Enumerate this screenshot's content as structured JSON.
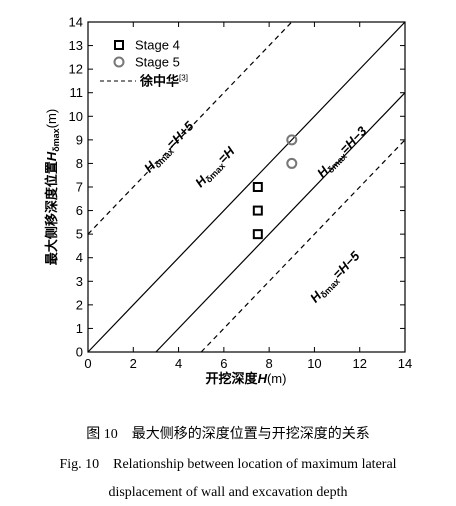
{
  "chart_data": {
    "type": "scatter",
    "xlabel": [
      "开挖深度",
      "H",
      "(m)"
    ],
    "ylabel": [
      "最大侧移深度位置",
      "H",
      "δmax",
      "(m)"
    ],
    "xlim": [
      0,
      14
    ],
    "ylim": [
      0,
      14
    ],
    "xticks": [
      0,
      2,
      4,
      6,
      8,
      10,
      12,
      14
    ],
    "yticks": [
      0,
      1,
      2,
      3,
      4,
      5,
      6,
      7,
      8,
      9,
      10,
      11,
      12,
      13,
      14
    ],
    "legend": "upper left",
    "series": [
      {
        "name": "Stage 4",
        "marker": "square",
        "color": "#000000",
        "x": [
          7.5,
          7.5,
          7.5
        ],
        "values": [
          5,
          6,
          7
        ]
      },
      {
        "name": "Stage 5",
        "marker": "circle",
        "color": "#777777",
        "x": [
          9,
          9
        ],
        "values": [
          8,
          9
        ]
      }
    ],
    "dashed_legend": [
      "徐中华",
      "[3]"
    ],
    "reference_lines": [
      {
        "dashed": true,
        "x": [
          0,
          9
        ],
        "values": [
          5,
          14
        ],
        "label": [
          "H",
          "δmax",
          "=H+5"
        ]
      },
      {
        "dashed": false,
        "x": [
          0,
          14
        ],
        "values": [
          0,
          14
        ],
        "label": [
          "H",
          "δmax",
          "=H"
        ]
      },
      {
        "dashed": false,
        "x": [
          3,
          14
        ],
        "values": [
          0,
          11
        ],
        "label": [
          "H",
          "δmax",
          "=H−3"
        ]
      },
      {
        "dashed": true,
        "x": [
          5,
          14
        ],
        "values": [
          0,
          9
        ],
        "label": [
          "H",
          "δmax",
          "=H−5"
        ]
      }
    ],
    "caption": [
      "图 10　最大侧移的深度位置与开挖深度的关系",
      "Fig. 10　Relationship between location of maximum lateral",
      "displacement of wall and excavation depth"
    ]
  }
}
